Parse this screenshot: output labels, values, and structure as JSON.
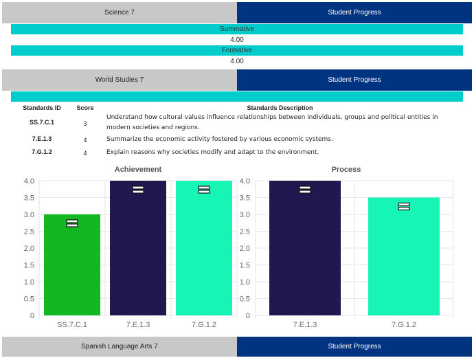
{
  "sections": [
    {
      "name": "Science 7",
      "tab": "Student Progress"
    },
    {
      "name": "World Studies 7",
      "tab": "Student Progress"
    },
    {
      "name": "Spanish Language Arts 7",
      "tab": "Student Progress"
    }
  ],
  "science": {
    "summative_label": "Summative",
    "summative_value": "4.00",
    "formative_label": "Formative",
    "formative_value": "4.00"
  },
  "standards": {
    "headers": {
      "id": "Standards ID",
      "score": "Score",
      "desc": "Standards Description"
    },
    "rows": [
      {
        "id": "SS.7.C.1",
        "score": "3",
        "desc": "Understand how cultural values influence relationships between individuals, groups and political entities in modern societies and regions."
      },
      {
        "id": "7.E.1.3",
        "score": "4",
        "desc": "Summarize the economic activity fostered by various economic systems."
      },
      {
        "id": "7.G.1.2",
        "score": "4",
        "desc": "Explain reasons why societies modify and adapt to the environment."
      }
    ]
  },
  "colors": {
    "tab_gray": "#c8c8c8",
    "tab_navy": "#003380",
    "cyan": "#00cccc",
    "bar_green": "#11b822",
    "bar_navy": "#20184e",
    "bar_mint": "#16f5b5"
  },
  "chart_data": [
    {
      "type": "bar",
      "title": "Achievement",
      "categories": [
        "SS.7.C.1",
        "7.E.1.3",
        "7.G.1.2"
      ],
      "values": [
        3.0,
        4.0,
        4.0
      ],
      "colors": [
        "#11b822",
        "#20184e",
        "#16f5b5"
      ],
      "yticks": [
        "0",
        "0.5",
        "1.0",
        "1.5",
        "2.0",
        "2.5",
        "3.0",
        "3.5",
        "4.0"
      ],
      "ylim": [
        0,
        4.0
      ],
      "grid": true
    },
    {
      "type": "bar",
      "title": "Process",
      "categories": [
        "7.E.1.3",
        "7.G.1.2"
      ],
      "values": [
        4.0,
        3.5
      ],
      "colors": [
        "#20184e",
        "#16f5b5"
      ],
      "yticks": [
        "0",
        "0.5",
        "1.0",
        "1.5",
        "2.0",
        "2.5",
        "3.0",
        "3.5",
        "4.0"
      ],
      "ylim": [
        0,
        4.0
      ],
      "grid": true
    }
  ]
}
